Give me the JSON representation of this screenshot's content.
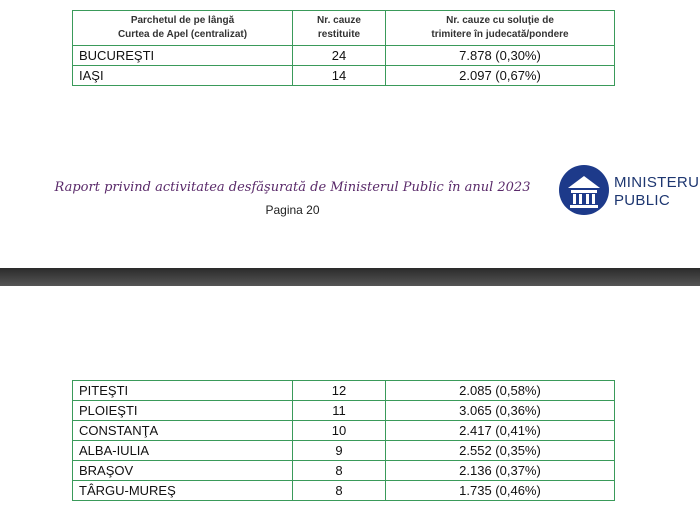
{
  "top_table": {
    "header": [
      [
        "Parchetul de pe lângă",
        "Curtea de Apel (centralizat)"
      ],
      [
        "Nr. cauze",
        "restituite"
      ],
      [
        "Nr. cauze cu soluţie de",
        "trimitere în judecată/pondere"
      ]
    ],
    "rows": [
      [
        "BUCUREŞTI",
        24,
        "7.878 (0,30%)"
      ],
      [
        "IAŞI",
        14,
        "2.097 (0,67%)"
      ]
    ]
  },
  "footer": {
    "title": "Raport privind activitatea desfăşurată de Ministerul Public în anul 2023",
    "page": "Pagina 20",
    "logo": [
      "MINISTERUL",
      "PUBLIC"
    ]
  },
  "bottom_table": {
    "rows": [
      [
        "PITEŞTI",
        12,
        "2.085 (0,58%)"
      ],
      [
        "PLOIEŞTI",
        11,
        "3.065 (0,36%)"
      ],
      [
        "CONSTANŢA",
        10,
        "2.417 (0,41%)"
      ],
      [
        "ALBA-IULIA",
        9,
        "2.552 (0,35%)"
      ],
      [
        "BRAŞOV",
        8,
        "2.136 (0,37%)"
      ],
      [
        "TÂRGU-MUREŞ",
        8,
        "1.735 (0,46%)"
      ]
    ]
  }
}
